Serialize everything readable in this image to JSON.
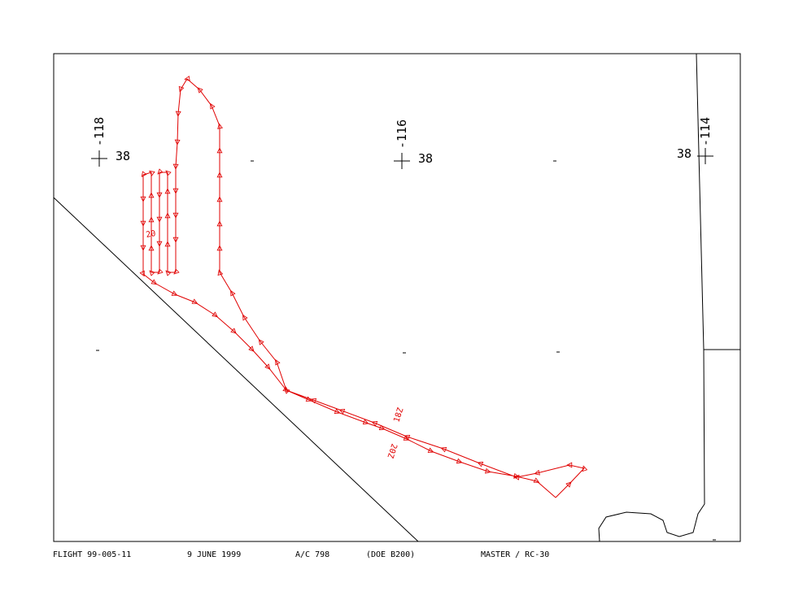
{
  "grid_labels": [
    {
      "lon": "-118",
      "lat": "38"
    },
    {
      "lon": "-116",
      "lat": "38"
    },
    {
      "lon": "-114",
      "lat": "38"
    }
  ],
  "track_labels": [
    "20",
    "18Z",
    "20Z"
  ],
  "footer": {
    "flight": "FLIGHT 99-005-11",
    "date": "9 JUNE 1999",
    "aircraft": "A/C 798",
    "type": "(DOE B200)",
    "sensor": "MASTER / RC-30"
  }
}
